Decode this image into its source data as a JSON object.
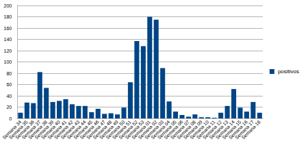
{
  "chart_data": {
    "type": "bar",
    "categories": [
      "Semana 34",
      "Semana 35",
      "Semana 36",
      "Semana 37",
      "Semana 38",
      "Semana 39",
      "Semana 40",
      "Semana 41",
      "Semana 42",
      "Semana 43",
      "Semana 44",
      "Semana 45",
      "Semana 46",
      "Semana 47",
      "Semana 48",
      "Semana 49",
      "Semana 50",
      "Semana 51",
      "Semana 52",
      "Semana 53",
      "Semana 01",
      "Semana 02",
      "Semana 03",
      "Semana 04",
      "Semana 05",
      "Semana 06",
      "Semana 07",
      "Semana 08",
      "Semana 09",
      "Semana 10",
      "Semana 11",
      "Semana 12",
      "Semana 13",
      "Semana 14",
      "Semana 15",
      "Semana 16",
      "Semana 17",
      "Semana 18"
    ],
    "series": [
      {
        "name": "positivos",
        "color": "#004586",
        "values": [
          10,
          28,
          27,
          82,
          54,
          29,
          31,
          34,
          25,
          22,
          22,
          11,
          17,
          8,
          9,
          7,
          19,
          64,
          137,
          128,
          180,
          175,
          89,
          30,
          12,
          6,
          3,
          7,
          2,
          2,
          1,
          10,
          22,
          52,
          19,
          12,
          29,
          10
        ]
      }
    ],
    "ylim": [
      0,
      200
    ],
    "yticks": [
      0,
      20,
      40,
      60,
      80,
      100,
      120,
      140,
      160,
      180,
      200
    ],
    "grid": true,
    "legend": "right"
  }
}
